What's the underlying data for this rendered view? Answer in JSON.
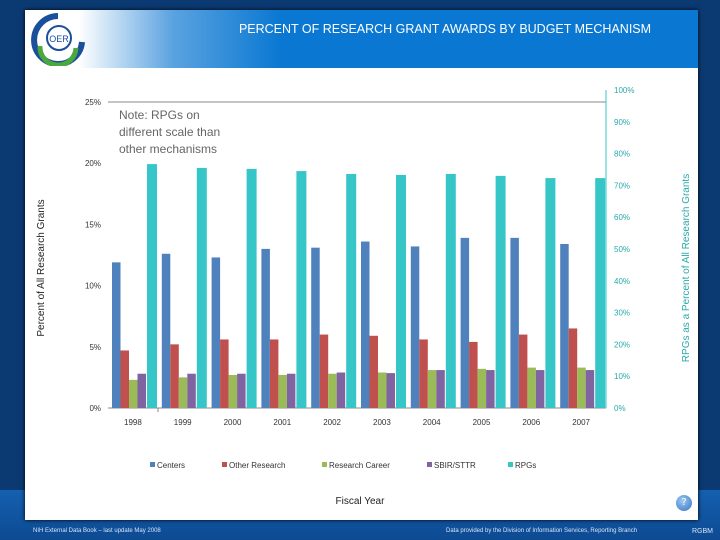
{
  "header": {
    "title": "PERCENT OF RESEARCH GRANT AWARDS BY BUDGET MECHANISM",
    "logo_text": "OER"
  },
  "footer": {
    "left": "NIH External Data Book – last update May 2008",
    "right": "Data provided by the Division of Information Services, Reporting Branch",
    "code": "RGBM",
    "help": "?"
  },
  "chart_data": {
    "type": "bar",
    "xlabel": "Fiscal Year",
    "ylabel": "Percent of All Research Grants",
    "y2label": "RPGs as a Percent of All Research Grants",
    "note": [
      "Note: RPGs on",
      "different scale than",
      "other mechanisms"
    ],
    "categories": [
      "1998",
      "1999",
      "2000",
      "2001",
      "2002",
      "2003",
      "2004",
      "2005",
      "2006",
      "2007"
    ],
    "ylim": [
      0,
      25
    ],
    "yticks": [
      "0%",
      "5%",
      "10%",
      "15%",
      "20%",
      "25%"
    ],
    "y2lim": [
      0,
      100
    ],
    "y2ticks": [
      "0%",
      "10%",
      "20%",
      "30%",
      "40%",
      "50%",
      "60%",
      "70%",
      "80%",
      "90%",
      "100%"
    ],
    "legend_position": "bottom",
    "series": [
      {
        "name": "Centers",
        "axis": "left",
        "color": "#4f81bd",
        "values": [
          11.9,
          12.6,
          12.3,
          13.0,
          13.1,
          13.6,
          13.2,
          13.9,
          13.9,
          13.4
        ]
      },
      {
        "name": "Other Research",
        "axis": "left",
        "color": "#c0504d",
        "values": [
          4.7,
          5.2,
          5.6,
          5.6,
          6.0,
          5.9,
          5.6,
          5.4,
          6.0,
          6.5
        ]
      },
      {
        "name": "Research Career",
        "axis": "left",
        "color": "#9bbb59",
        "values": [
          2.3,
          2.5,
          2.7,
          2.7,
          2.8,
          2.9,
          3.1,
          3.2,
          3.3,
          3.3
        ]
      },
      {
        "name": "SBIR/STTR",
        "axis": "left",
        "color": "#8064a2",
        "values": [
          2.8,
          2.8,
          2.8,
          2.8,
          2.9,
          2.85,
          3.1,
          3.1,
          3.1,
          3.1
        ]
      },
      {
        "name": "RPGs",
        "axis": "right",
        "color": "#36c6c8",
        "values": [
          76.7,
          75.5,
          75.2,
          74.5,
          73.6,
          73.3,
          73.6,
          73.0,
          72.3,
          72.3
        ]
      }
    ]
  }
}
